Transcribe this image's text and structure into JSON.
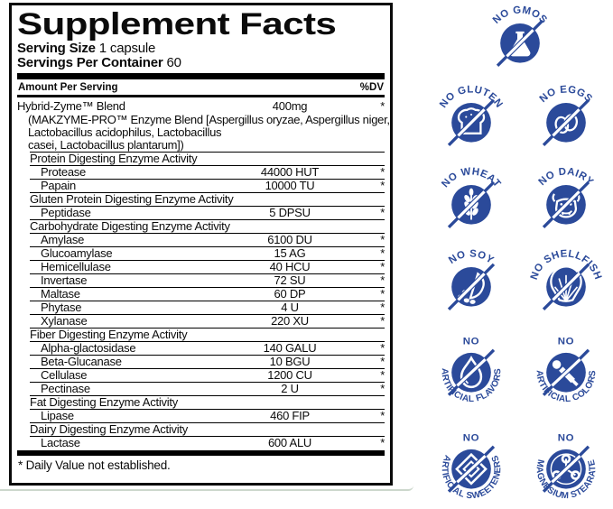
{
  "panel": {
    "title": "Supplement Facts",
    "serving_size_label": "Serving Size",
    "serving_size_value": "1 capsule",
    "servings_label": "Servings Per Container",
    "servings_value": "60",
    "amount_per_serving_label": "Amount Per Serving",
    "dv_label": "%DV",
    "blend": {
      "name": "Hybrid-Zyme™ Blend",
      "amount": "400mg",
      "dv": "*",
      "description_lines": [
        "(MAKZYME-PRO™ Enzyme Blend [Aspergillus oryzae, Aspergillus niger,",
        "Lactobacillus acidophilus, Lactobacillus",
        "casei, Lactobacillus plantarum])"
      ]
    },
    "sections": [
      {
        "header": "Protein Digesting Enzyme Activity",
        "rows": [
          {
            "name": "Protease",
            "amount": "44000 HUT",
            "dv": "*"
          },
          {
            "name": "Papain",
            "amount": "10000 TU",
            "dv": "*"
          }
        ]
      },
      {
        "header": "Gluten Protein Digesting Enzyme Activity",
        "rows": [
          {
            "name": "Peptidase",
            "amount": "5 DPSU",
            "dv": "*"
          }
        ]
      },
      {
        "header": "Carbohydrate Digesting Enzyme Activity",
        "rows": [
          {
            "name": "Amylase",
            "amount": "6100 DU",
            "dv": "*"
          },
          {
            "name": "Glucoamylase",
            "amount": "15 AG",
            "dv": "*"
          },
          {
            "name": "Hemicellulase",
            "amount": "40 HCU",
            "dv": "*"
          },
          {
            "name": "Invertase",
            "amount": "72 SU",
            "dv": "*"
          },
          {
            "name": "Maltase",
            "amount": "60 DP",
            "dv": "*"
          },
          {
            "name": "Phytase",
            "amount": "4 U",
            "dv": "*"
          },
          {
            "name": "Xylanase",
            "amount": "220 XU",
            "dv": "*"
          }
        ]
      },
      {
        "header": "Fiber Digesting Enzyme Activity",
        "rows": [
          {
            "name": "Alpha-glactosidase",
            "amount": "140 GALU",
            "dv": "*"
          },
          {
            "name": "Beta-Glucanase",
            "amount": "10 BGU",
            "dv": "*"
          },
          {
            "name": "Cellulase",
            "amount": "1200 CU",
            "dv": "*"
          },
          {
            "name": "Pectinase",
            "amount": "2 U",
            "dv": "*"
          }
        ]
      },
      {
        "header": "Fat Digesting Enzyme Activity",
        "rows": [
          {
            "name": "Lipase",
            "amount": "460 FIP",
            "dv": "*"
          }
        ]
      },
      {
        "header": "Dairy Digesting Enzyme Activity",
        "rows": [
          {
            "name": "Lactase",
            "amount": "600 ALU",
            "dv": "*"
          }
        ]
      }
    ],
    "footnote": "* Daily Value not established."
  },
  "badges": {
    "accent_color": "#2b4a9a",
    "items": [
      {
        "label": "NO GMOS",
        "icon": "flask-icon",
        "style": "top"
      },
      {
        "label": "NO GLUTEN",
        "icon": "bread-icon",
        "style": "top"
      },
      {
        "label": "NO EGGS",
        "icon": "eggs-icon",
        "style": "top"
      },
      {
        "label": "NO WHEAT",
        "icon": "wheat-icon",
        "style": "top"
      },
      {
        "label": "NO DAIRY",
        "icon": "cow-icon",
        "style": "top"
      },
      {
        "label": "NO SOY",
        "icon": "soy-icon",
        "style": "top"
      },
      {
        "label": "NO SHELLFISH",
        "icon": "shell-icon",
        "style": "top"
      },
      {
        "no_label": "NO",
        "label": "ARTIFICIAL FLAVORS",
        "icon": "drop-icon",
        "style": "bottom"
      },
      {
        "no_label": "NO",
        "label": "ARTIFICIAL COLORS",
        "icon": "dropper-icon",
        "style": "bottom"
      },
      {
        "no_label": "NO",
        "label": "ARTIFICIAL SWEETENERS",
        "icon": "diamond-icon",
        "style": "bottom"
      },
      {
        "no_label": "NO",
        "label": "MAGNESIUM STEARATE",
        "icon": "molecule-icon",
        "style": "bottom"
      }
    ]
  }
}
